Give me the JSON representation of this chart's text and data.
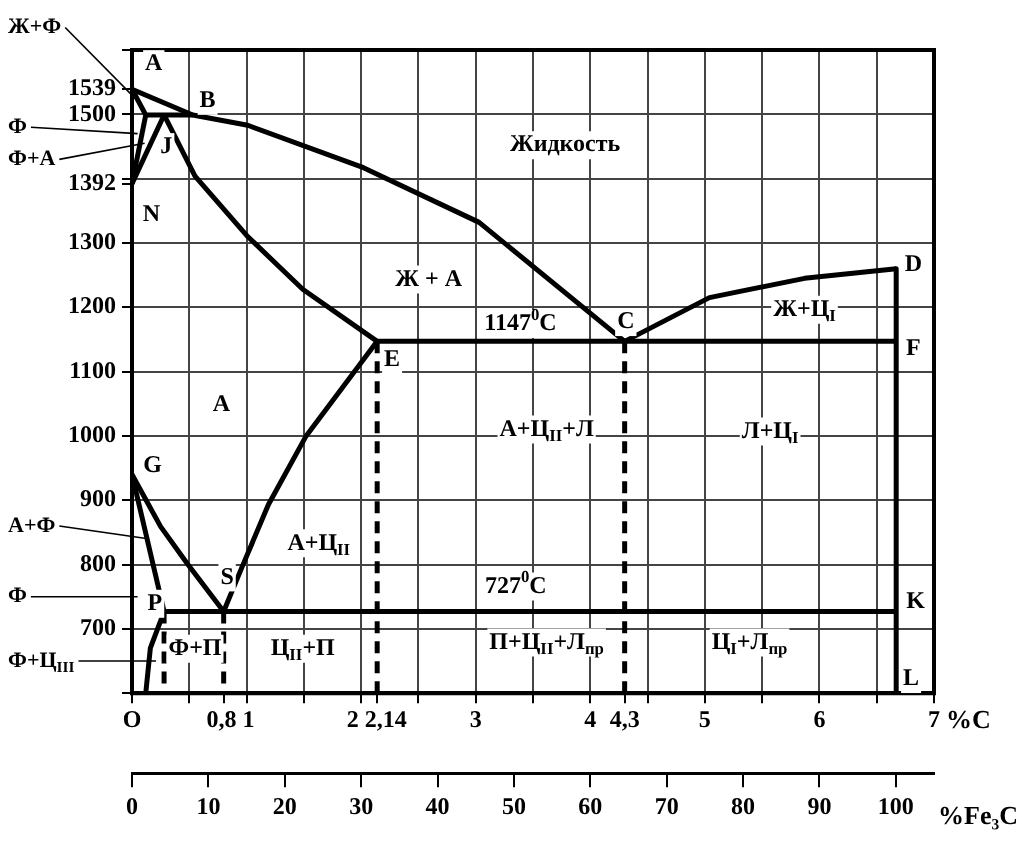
{
  "chart_data": {
    "type": "line",
    "xlabel": "%C",
    "x2label": "%Fe₃C",
    "xlim": [
      0,
      7
    ],
    "xticks": [
      {
        "value": 0,
        "label": "O"
      },
      {
        "value": 0.5,
        "label": null
      },
      {
        "value": 0.8,
        "label": "0,8"
      },
      1,
      {
        "value": 1.5,
        "label": null
      },
      2,
      {
        "value": 2.14,
        "label": "2,14"
      },
      {
        "value": 2.5,
        "label": null
      },
      3,
      {
        "value": 3.5,
        "label": null
      },
      4,
      {
        "value": 4.3,
        "label": "4,3"
      },
      {
        "value": 4.5,
        "label": null
      },
      5,
      {
        "value": 5.5,
        "label": null
      },
      6,
      {
        "value": 6.5,
        "label": null
      },
      7
    ],
    "x2lim": [
      0,
      105
    ],
    "x2ticks": [
      0,
      10,
      20,
      30,
      40,
      50,
      60,
      70,
      80,
      90,
      100
    ],
    "ylim": [
      600,
      1600
    ],
    "yticks": [
      {
        "value": 600,
        "label": null
      },
      700,
      800,
      900,
      1000,
      1100,
      1200,
      1300,
      1392,
      {
        "value": 1400,
        "label": null
      },
      1500,
      1539,
      {
        "value": 1600,
        "label": null
      }
    ],
    "grid": true,
    "series": [
      {
        "color": "#000000",
        "x": [
          0,
          0.53,
          1.01,
          2.02,
          3.03,
          4.3
        ],
        "values": [
          1539,
          1499,
          1483,
          1417,
          1332,
          1147
        ]
      },
      {
        "color": "#000000",
        "x": [
          4.3,
          5.04,
          5.87,
          6.67
        ],
        "values": [
          1147,
          1215,
          1245,
          1260
        ]
      },
      {
        "color": "#000000",
        "x": [
          0,
          0.12,
          0.53
        ],
        "values": [
          1539,
          1499,
          1499
        ]
      },
      {
        "color": "#000000",
        "x": [
          0.12,
          0
        ],
        "values": [
          1499,
          1392
        ]
      },
      {
        "color": "#000000",
        "x": [
          0.28,
          0
        ],
        "values": [
          1499,
          1392
        ]
      },
      {
        "color": "#000000",
        "x": [
          0.28,
          0.55,
          1.01,
          1.49,
          2.14
        ],
        "values": [
          1499,
          1404,
          1310,
          1228,
          1147
        ]
      },
      {
        "color": "#000000",
        "x": [
          2.14,
          6.67
        ],
        "values": [
          1147,
          1147
        ]
      },
      {
        "color": "#000000",
        "x": [
          6.67,
          6.67,
          6.67
        ],
        "values": [
          1260,
          1147,
          600
        ]
      },
      {
        "color": "#000000",
        "x": [
          0,
          0.25,
          0.48,
          0.8
        ],
        "values": [
          940,
          859,
          802,
          727
        ]
      },
      {
        "color": "#000000",
        "x": [
          0,
          0.28
        ],
        "values": [
          940,
          727
        ]
      },
      {
        "color": "#000000",
        "x": [
          0.28,
          0.16,
          0.12
        ],
        "values": [
          727,
          670,
          600
        ]
      },
      {
        "color": "#000000",
        "x": [
          2.14,
          1.52,
          1.19,
          0.96,
          0.8
        ],
        "values": [
          1147,
          1000,
          893,
          796,
          727
        ]
      },
      {
        "color": "#000000",
        "x": [
          0.28,
          6.67
        ],
        "values": [
          727,
          727
        ]
      },
      {
        "color": "#000000",
        "line_style": "dashed",
        "x": [
          0.28,
          0.28
        ],
        "values": [
          727,
          600
        ]
      },
      {
        "color": "#000000",
        "line_style": "dashed",
        "x": [
          0.8,
          0.8
        ],
        "values": [
          727,
          600
        ]
      },
      {
        "color": "#000000",
        "line_style": "dashed",
        "x": [
          2.14,
          2.14
        ],
        "values": [
          1147,
          600
        ]
      },
      {
        "color": "#000000",
        "line_style": "dashed",
        "x": [
          4.3,
          4.3
        ],
        "values": [
          1147,
          600
        ]
      }
    ],
    "annotations": [
      {
        "text": "A",
        "x": 0.19,
        "y": 1578
      },
      {
        "text": "B",
        "x": 0.66,
        "y": 1521
      },
      {
        "text": "J",
        "x": 0.3,
        "y": 1449
      },
      {
        "text": "N",
        "x": 0.17,
        "y": 1344
      },
      {
        "text": "C",
        "x": 4.31,
        "y": 1177
      },
      {
        "text": "D",
        "x": 6.82,
        "y": 1266
      },
      {
        "text": "F",
        "x": 6.82,
        "y": 1135
      },
      {
        "text": "E",
        "x": 2.27,
        "y": 1118
      },
      {
        "text": "G",
        "x": 0.18,
        "y": 953
      },
      {
        "text": "S",
        "x": 0.83,
        "y": 780
      },
      {
        "text": "P",
        "x": 0.2,
        "y": 739
      },
      {
        "text": "K",
        "x": 6.84,
        "y": 742
      },
      {
        "text": "L",
        "x": 6.8,
        "y": 622
      },
      "Жидкость",
      {
        "text": "Ж + А",
        "x": 2.59,
        "y": 1243
      },
      {
        "text": "1147$^{0}$C",
        "x": 3.39,
        "y": 1174
      },
      {
        "text": "Ж+Ц$_{I}$",
        "x": 5.87,
        "y": 1196
      },
      {
        "text": "А",
        "x": 0.78,
        "y": 1048
      },
      "А+Ц$_{II}$+Л",
      {
        "text": "Л+Ц$_{I}$",
        "x": 5.57,
        "y": 1007
      },
      {
        "text": "А+Ц$_{II}$",
        "x": 1.63,
        "y": 833
      },
      {
        "text": "727$^{0}$C",
        "x": 3.35,
        "y": 766
      },
      {
        "text": "Ф+П",
        "x": 0.55,
        "y": 669
      },
      {
        "text": "Ц$_{II}$+П",
        "x": 1.49,
        "y": 669
      },
      "П+Ц$_{II}$+Л$_{пр}$",
      {
        "text": "Ц$_{I}$+Л$_{пр}$",
        "x": 5.39,
        "y": 679
      },
      {
        "text": "Ж+Ф",
        "x": 0.06,
        "y": 1519
      },
      "Ф",
      {
        "text": "Ф+А",
        "x": 0.11,
        "y": 1455
      },
      {
        "text": "А+Ф",
        "x": 0.14,
        "y": 840
      },
      "Ф",
      "Ф+Ц$_{III}$"
    ]
  }
}
